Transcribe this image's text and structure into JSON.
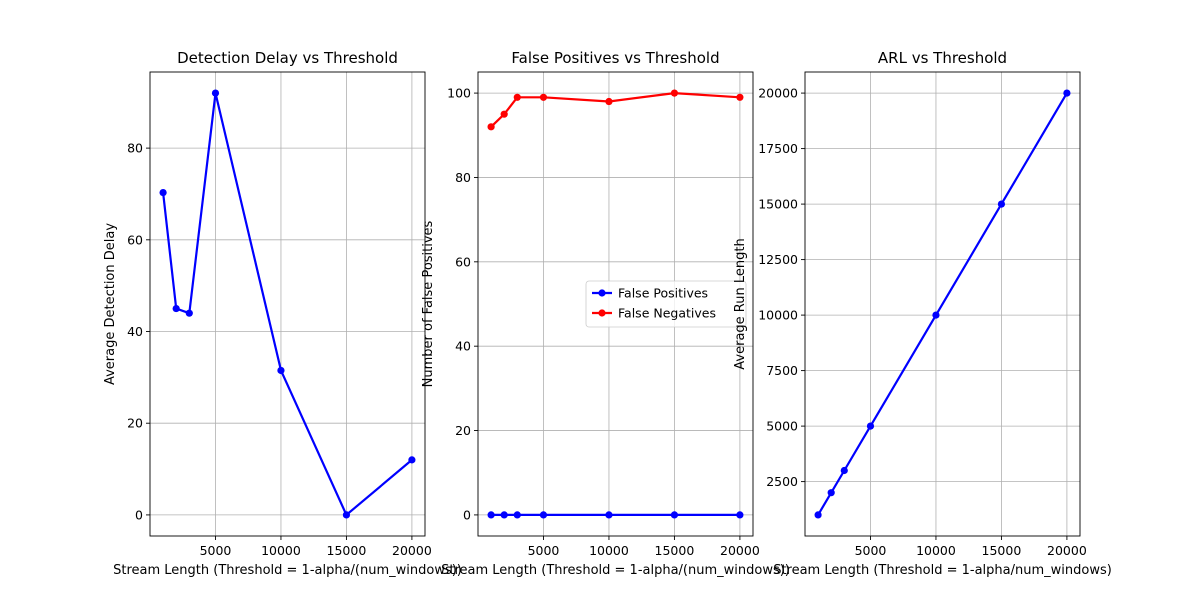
{
  "chart_data": [
    {
      "type": "line",
      "title": "Detection Delay vs Threshold",
      "xlabel": "Stream Length (Threshold = 1-alpha/(num_windows))",
      "ylabel": "Average Detection Delay",
      "xlim": [
        0,
        21000
      ],
      "ylim": [
        -4.6,
        96.6
      ],
      "xticks": [
        5000,
        10000,
        15000,
        20000
      ],
      "yticks": [
        0,
        20,
        40,
        60,
        80
      ],
      "grid": true,
      "x": [
        1000,
        2000,
        3000,
        5000,
        10000,
        15000,
        20000
      ],
      "series": [
        {
          "color": "#0000ff",
          "values": [
            70.3,
            45,
            44,
            92,
            31.5,
            0,
            12
          ]
        }
      ]
    },
    {
      "type": "line",
      "title": "False Positives vs Threshold",
      "xlabel": "Stream Length (Threshold = 1-alpha/(num_windows))",
      "ylabel": "Number of False Positives",
      "xlim": [
        0,
        21000
      ],
      "ylim": [
        -5,
        105
      ],
      "xticks": [
        5000,
        10000,
        15000,
        20000
      ],
      "yticks": [
        0,
        20,
        40,
        60,
        80,
        100
      ],
      "grid": true,
      "legend": "center-right",
      "x": [
        1000,
        2000,
        3000,
        5000,
        10000,
        15000,
        20000
      ],
      "series": [
        {
          "name": "False Positives",
          "color": "#0000ff",
          "values": [
            0,
            0,
            0,
            0,
            0,
            0,
            0
          ]
        },
        {
          "name": "False Negatives",
          "color": "#ff0000",
          "values": [
            92,
            95,
            99,
            99,
            98,
            100,
            99
          ]
        }
      ]
    },
    {
      "type": "line",
      "title": "ARL vs Threshold",
      "xlabel": "Stream Length (Threshold = 1-alpha/num_windows)",
      "ylabel": "Average Run Length",
      "xlim": [
        0,
        21000
      ],
      "ylim": [
        50,
        20950
      ],
      "xticks": [
        5000,
        10000,
        15000,
        20000
      ],
      "yticks": [
        2500,
        5000,
        7500,
        10000,
        12500,
        15000,
        17500,
        20000
      ],
      "grid": true,
      "x": [
        1000,
        2000,
        3000,
        5000,
        10000,
        15000,
        20000
      ],
      "series": [
        {
          "color": "#0000ff",
          "values": [
            1000,
            2000,
            3000,
            5000,
            10000,
            15000,
            20000
          ]
        }
      ]
    }
  ]
}
